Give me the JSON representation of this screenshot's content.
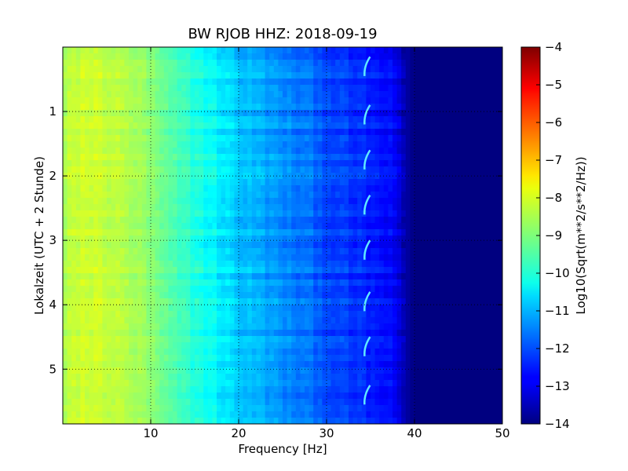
{
  "chart_data": {
    "type": "heatmap",
    "title": "BW RJOB HHZ: 2018-09-19",
    "xlabel": "Frequency [Hz]",
    "ylabel": "Lokalzeit (UTC + 2 Stunde)",
    "colorbar_label": "Log10(Sqrt(m**2/s**2/Hz))",
    "colormap": "jet",
    "grid": true,
    "xlim": [
      0,
      50
    ],
    "ylim": [
      5.85,
      0
    ],
    "x_ticks": [
      10,
      20,
      30,
      40,
      50
    ],
    "x_tick_labels": [
      "10",
      "20",
      "30",
      "40",
      "50"
    ],
    "y_ticks": [
      1,
      2,
      3,
      4,
      5
    ],
    "y_tick_labels": [
      "1",
      "2",
      "3",
      "4",
      "5"
    ],
    "color_range": [
      -14,
      -4
    ],
    "colorbar_ticks": [
      -4,
      -5,
      -6,
      -7,
      -8,
      -9,
      -10,
      -11,
      -12,
      -13,
      -14
    ],
    "colorbar_tick_labels": [
      "−4",
      "−5",
      "−6",
      "−7",
      "−8",
      "−9",
      "−10",
      "−11",
      "−12",
      "−13",
      "−14"
    ],
    "spectrum_profile": {
      "frequency_hz": [
        0,
        2,
        5,
        8,
        10,
        12,
        15,
        18,
        20,
        22,
        25,
        28,
        30,
        32,
        35,
        37,
        38,
        39,
        40,
        50
      ],
      "log10_psd": [
        -8.6,
        -8.2,
        -8.3,
        -8.6,
        -8.9,
        -9.4,
        -9.9,
        -10.4,
        -10.8,
        -11.0,
        -11.4,
        -11.7,
        -12.0,
        -12.2,
        -12.5,
        -12.7,
        -13.0,
        -13.6,
        -14.0,
        -14.0
      ]
    },
    "periodic_signal": {
      "frequency_hz": 34.5,
      "hours": [
        0.3,
        1.05,
        1.75,
        2.45,
        3.15,
        3.95,
        4.65,
        5.4
      ]
    }
  }
}
